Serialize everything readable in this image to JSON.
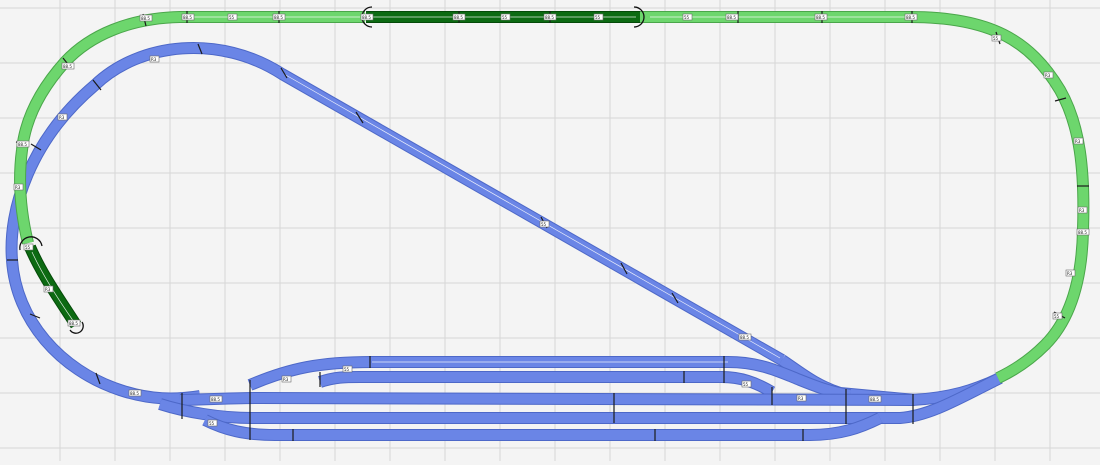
{
  "diagram": {
    "type": "model-railway-track-plan",
    "colors": {
      "background": "#f4f4f4",
      "grid": "#d6d6d6",
      "main_loop": "#6dd66d",
      "selected_track": "#0c6a12",
      "yard_and_inner_loop": "#6a85e6"
    },
    "segment_labels": {
      "top": [
        "88.5",
        "88.5",
        "55",
        "88.5",
        "88.5",
        "88.5",
        "55",
        "88.5",
        "55",
        "55",
        "88.5",
        "88.5"
      ],
      "right": [
        "88.5",
        "55",
        "R3",
        "R3",
        "R3",
        "88.5",
        "R3",
        "55"
      ],
      "left": [
        "88.5",
        "R3",
        "88.5",
        "R3",
        "R3",
        "55",
        "R3",
        "88.5"
      ],
      "yard": [
        "55",
        "88.5",
        "R3",
        "55",
        "88.5",
        "88.5",
        "55",
        "R3",
        "88.5",
        "55"
      ]
    }
  }
}
